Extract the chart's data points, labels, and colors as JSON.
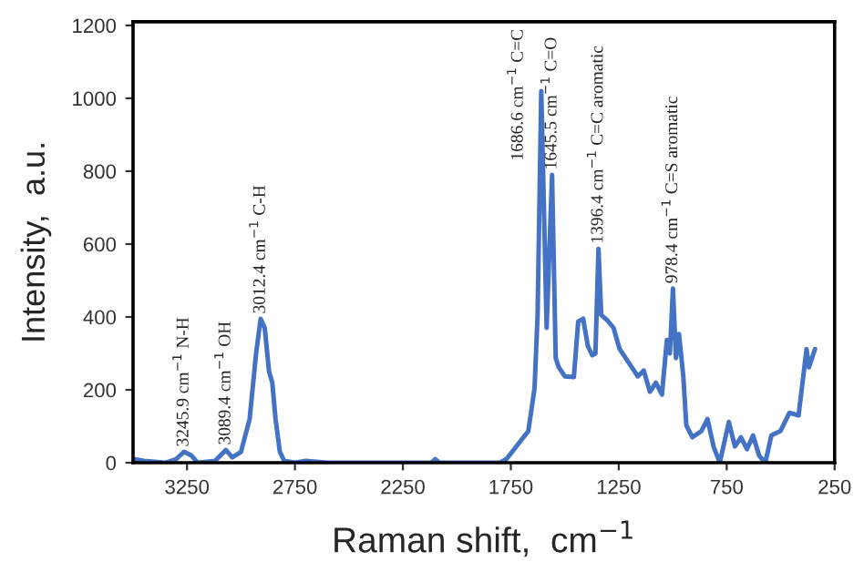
{
  "chart_data": {
    "type": "line",
    "xlabel": "Raman shift,  cm$^{−1}$",
    "ylabel": "Intensity,  a.u.",
    "x": [
      3500,
      3450,
      3350,
      3300,
      3264,
      3230,
      3200,
      3120,
      3070,
      3040,
      3000,
      2960,
      2930,
      2909,
      2890,
      2870,
      2855,
      2840,
      2820,
      2800,
      2750,
      2700,
      2600,
      2120,
      2100,
      2080,
      1800,
      1770,
      1669,
      1640,
      1626,
      1609,
      1584,
      1559,
      1542,
      1528,
      1500,
      1458,
      1438,
      1415,
      1393,
      1373,
      1358,
      1344,
      1331,
      1302,
      1274,
      1246,
      1218,
      1190,
      1162,
      1134,
      1106,
      1078,
      1050,
      1027,
      1013,
      999,
      985,
      971,
      951,
      937,
      909,
      867,
      839,
      811,
      782,
      740,
      712,
      684,
      656,
      628,
      600,
      571,
      543,
      501,
      459,
      417,
      380,
      369,
      341
    ],
    "series": [
      {
        "color": "#4472c4",
        "values": [
          10,
          5,
          0,
          10,
          30,
          20,
          0,
          5,
          35,
          15,
          30,
          120,
          300,
          395,
          370,
          250,
          220,
          120,
          30,
          5,
          0,
          5,
          0,
          0,
          10,
          0,
          0,
          10,
          87,
          205,
          405,
          1020,
          370,
          790,
          287,
          262,
          237,
          235,
          387,
          395,
          320,
          295,
          300,
          587,
          405,
          390,
          370,
          312,
          287,
          262,
          237,
          253,
          195,
          220,
          187,
          337,
          300,
          478,
          287,
          353,
          237,
          103,
          70,
          87,
          120,
          45,
          0,
          112,
          45,
          70,
          37,
          75,
          20,
          0,
          75,
          87,
          137,
          130,
          312,
          262,
          312
        ]
      }
    ],
    "xlim": [
      3500,
      250
    ],
    "xticks": [
      3250,
      2750,
      2250,
      1750,
      1250,
      750,
      250
    ],
    "ylim": [
      0,
      1210
    ],
    "yticks": [
      0,
      200,
      400,
      600,
      800,
      1000,
      1200
    ],
    "grid": false,
    "legend": false,
    "marker": "none",
    "line_style": "solid",
    "annotations": [
      {
        "text": "3245.9 cm$^{−1}$ N-H",
        "x": 3264,
        "y": 30
      },
      {
        "text": "3089.4 cm$^{−1}$ OH",
        "x": 3070,
        "y": 35
      },
      {
        "text": "3012.4 cm$^{−1}$ C-H",
        "x": 2909,
        "y": 395
      },
      {
        "text": "1686.6 cm$^{−1}$ C=C",
        "x": 1609,
        "y": 1020
      },
      {
        "text": "1645.5 cm$^{−1}$ C=O",
        "x": 1559,
        "y": 790
      },
      {
        "text": "1396.4 cm$^{−1}$ C=C aromatic",
        "x": 1344,
        "y": 587
      },
      {
        "text": "978.4 cm$^{−1}$ C=S aromatic",
        "x": 999,
        "y": 478
      }
    ]
  }
}
